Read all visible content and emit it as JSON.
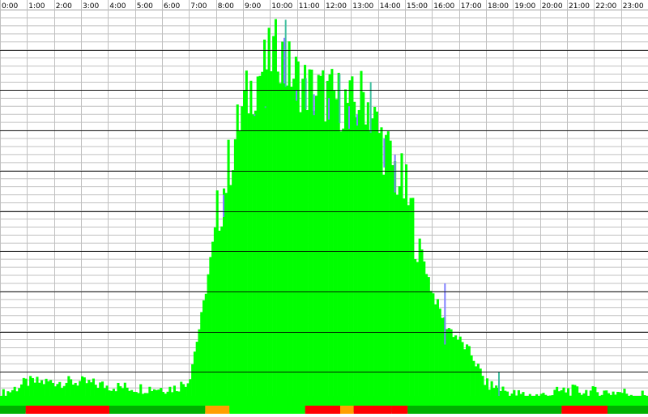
{
  "chart_data": {
    "type": "bar",
    "title": "",
    "xlabel": "",
    "ylabel": "",
    "x_tick_labels": [
      "0:00",
      "1:00",
      "2:00",
      "3:00",
      "4:00",
      "5:00",
      "6:00",
      "7:00",
      "8:00",
      "9:00",
      "10:00",
      "11:00",
      "12:00",
      "13:00",
      "14:00",
      "15:00",
      "16:00",
      "17:00",
      "18:00",
      "19:00",
      "20:00",
      "21:00",
      "22:00",
      "23:00"
    ],
    "y_axis": {
      "tick_labels_shown": false,
      "major_grid_lines": 10,
      "minor_grid_lines": 50,
      "grid": true
    },
    "x_axis": {
      "unit": "hour",
      "range": [
        0,
        24
      ],
      "grid": true
    },
    "colors": {
      "background": "#ffffff",
      "grid_minor": "#c0c0c0",
      "grid_major": "#000000",
      "main_series": "#00ff00",
      "overlay_series": "#7f7fff",
      "teal_series": "#3fbf9f",
      "baseline_green": "#00ff00",
      "baseline_dark_green": "#00b000",
      "baseline_red": "#ff0000",
      "baseline_orange": "#ff9f00"
    },
    "series": [
      {
        "key": "main",
        "color": "#00ff00",
        "profile": [
          [
            0,
            0.04
          ],
          [
            1,
            0.075
          ],
          [
            2,
            0.075
          ],
          [
            3,
            0.075
          ],
          [
            4,
            0.065
          ],
          [
            5,
            0.06
          ],
          [
            6,
            0.06
          ],
          [
            6.5,
            0.06
          ],
          [
            7,
            0.08
          ],
          [
            7.5,
            0.25
          ],
          [
            8,
            0.47
          ],
          [
            8.5,
            0.62
          ],
          [
            9,
            0.76
          ],
          [
            9.5,
            0.83
          ],
          [
            10,
            0.88
          ],
          [
            10.3,
            0.91
          ],
          [
            10.6,
            0.86
          ],
          [
            11,
            0.83
          ],
          [
            11.5,
            0.8
          ],
          [
            12,
            0.79
          ],
          [
            12.5,
            0.78
          ],
          [
            13,
            0.76
          ],
          [
            13.5,
            0.79
          ],
          [
            14,
            0.7
          ],
          [
            14.5,
            0.62
          ],
          [
            15,
            0.55
          ],
          [
            15.5,
            0.43
          ],
          [
            16,
            0.3
          ],
          [
            16.5,
            0.22
          ],
          [
            17,
            0.18
          ],
          [
            17.5,
            0.14
          ],
          [
            18,
            0.07
          ],
          [
            18.5,
            0.06
          ],
          [
            19,
            0.045
          ],
          [
            20,
            0.04
          ],
          [
            21,
            0.055
          ],
          [
            22,
            0.05
          ],
          [
            23,
            0.05
          ],
          [
            24,
            0.04
          ]
        ]
      },
      {
        "key": "overlay",
        "color": "#7f7fff",
        "spikes": [
          [
            10.55,
            0.975
          ],
          [
            10.5,
            0.93
          ],
          [
            10.95,
            0.8
          ],
          [
            11.3,
            0.83
          ],
          [
            11.6,
            0.79
          ],
          [
            12.15,
            0.78
          ],
          [
            12.55,
            0.84
          ],
          [
            12.9,
            0.76
          ],
          [
            13.2,
            0.74
          ],
          [
            13.7,
            0.82
          ],
          [
            14.2,
            0.68
          ],
          [
            14.6,
            0.64
          ],
          [
            9.8,
            0.76
          ],
          [
            9.4,
            0.74
          ],
          [
            16.45,
            0.32
          ],
          [
            18.45,
            0.1
          ],
          [
            8.25,
            0.54
          ]
        ]
      }
    ],
    "baseline_bands": [
      {
        "from": 0.0,
        "to": 0.95,
        "color": "#00b000"
      },
      {
        "from": 0.95,
        "to": 4.05,
        "color": "#ff0000"
      },
      {
        "from": 4.05,
        "to": 7.6,
        "color": "#00b000"
      },
      {
        "from": 7.6,
        "to": 8.5,
        "color": "#ff9f00"
      },
      {
        "from": 8.5,
        "to": 11.3,
        "color": "#00ff00"
      },
      {
        "from": 11.3,
        "to": 12.6,
        "color": "#ff0000"
      },
      {
        "from": 12.6,
        "to": 13.1,
        "color": "#ff9f00"
      },
      {
        "from": 13.1,
        "to": 14.5,
        "color": "#ff0000"
      },
      {
        "from": 14.5,
        "to": 15.1,
        "color": "#ff0000"
      },
      {
        "from": 15.1,
        "to": 17.7,
        "color": "#00b000"
      },
      {
        "from": 17.7,
        "to": 20.8,
        "color": "#00b000"
      },
      {
        "from": 20.8,
        "to": 22.5,
        "color": "#ff0000"
      },
      {
        "from": 22.5,
        "to": 24.0,
        "color": "#00b000"
      }
    ]
  }
}
